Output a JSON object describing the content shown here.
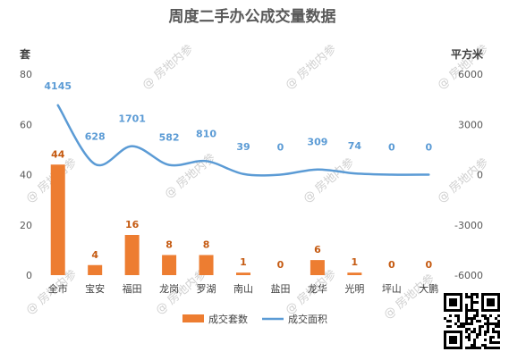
{
  "chart_data": {
    "type": "bar",
    "title": "周度二手办公成交量数据",
    "categories": [
      "全市",
      "宝安",
      "福田",
      "龙岗",
      "罗湖",
      "南山",
      "盐田",
      "龙华",
      "光明",
      "坪山",
      "大鹏"
    ],
    "series": [
      {
        "name": "成交套数",
        "type": "bar",
        "axis": "left",
        "color": "#ed7d31",
        "values": [
          44,
          4,
          16,
          8,
          8,
          1,
          0,
          6,
          1,
          0,
          0
        ]
      },
      {
        "name": "成交面积",
        "type": "line",
        "axis": "right",
        "smooth": true,
        "color": "#5b9bd5",
        "values": [
          4145,
          628,
          1701,
          582,
          810,
          39,
          0,
          309,
          74,
          0,
          0
        ]
      }
    ],
    "y_left": {
      "label": "套",
      "range": [
        0,
        80
      ],
      "ticks": [
        "0",
        "20",
        "40",
        "60",
        "80"
      ]
    },
    "y_right": {
      "label": "平方米",
      "range": [
        -6000,
        6000
      ],
      "ticks": [
        "-6000",
        "-3000",
        "0",
        "3000",
        "6000"
      ]
    },
    "grid": false,
    "legend": "bottom",
    "watermark": "房地内参"
  }
}
